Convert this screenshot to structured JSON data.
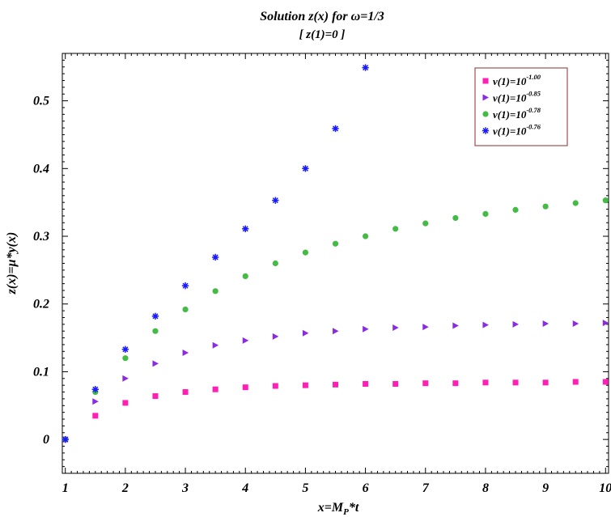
{
  "chart_data": {
    "type": "scatter",
    "title": "Solution z(x) for ω=1/3",
    "subtitle": "[ z(1)=0 ]",
    "xlabel": {
      "main": "x=M",
      "sub": "P",
      "rest": "*t"
    },
    "ylabel": "z(x)=μ*y(x)",
    "xlim": [
      0.95,
      10.05
    ],
    "ylim": [
      -0.05,
      0.57
    ],
    "xticks": [
      1,
      2,
      3,
      4,
      5,
      6,
      7,
      8,
      9,
      10
    ],
    "xtick_labels": [
      "1",
      "2",
      "3",
      "4",
      "5",
      "6",
      "7",
      "8",
      "9",
      "10"
    ],
    "yticks": [
      0,
      0.1,
      0.2,
      0.3,
      0.4,
      0.5
    ],
    "ytick_labels": [
      "0",
      "0.1",
      "0.2",
      "0.3",
      "0.4",
      "0.5"
    ],
    "grid": false,
    "legend_position": "top-right",
    "series": [
      {
        "name": {
          "base": "v(1)=10",
          "exp": "-1.00"
        },
        "marker": "square",
        "color": "#ff1fb4",
        "x": [
          1,
          1.5,
          2,
          2.5,
          3,
          3.5,
          4,
          4.5,
          5,
          5.5,
          6,
          6.5,
          7,
          7.5,
          8,
          8.5,
          9,
          9.5,
          10
        ],
        "y": [
          0,
          0.035,
          0.054,
          0.064,
          0.07,
          0.074,
          0.077,
          0.079,
          0.08,
          0.081,
          0.082,
          0.082,
          0.083,
          0.083,
          0.084,
          0.084,
          0.084,
          0.085,
          0.085
        ]
      },
      {
        "name": {
          "base": "v(1)=10",
          "exp": "-0.85"
        },
        "marker": "triangle-right",
        "color": "#8a2be2",
        "x": [
          1,
          1.5,
          2,
          2.5,
          3,
          3.5,
          4,
          4.5,
          5,
          5.5,
          6,
          6.5,
          7,
          7.5,
          8,
          8.5,
          9,
          9.5,
          10
        ],
        "y": [
          0,
          0.056,
          0.09,
          0.112,
          0.128,
          0.139,
          0.146,
          0.152,
          0.157,
          0.16,
          0.163,
          0.165,
          0.166,
          0.168,
          0.169,
          0.17,
          0.171,
          0.171,
          0.172
        ]
      },
      {
        "name": {
          "base": "v(1)=10",
          "exp": "-0.78"
        },
        "marker": "circle",
        "color": "#44bb44",
        "x": [
          1,
          1.5,
          2,
          2.5,
          3,
          3.5,
          4,
          4.5,
          5,
          5.5,
          6,
          6.5,
          7,
          7.5,
          8,
          8.5,
          9,
          9.5,
          10
        ],
        "y": [
          0,
          0.07,
          0.12,
          0.16,
          0.192,
          0.219,
          0.241,
          0.26,
          0.276,
          0.289,
          0.3,
          0.311,
          0.319,
          0.327,
          0.333,
          0.339,
          0.344,
          0.349,
          0.353
        ]
      },
      {
        "name": {
          "base": "v(1)=10",
          "exp": "-0.76"
        },
        "marker": "star",
        "color": "#1a1aff",
        "x": [
          1,
          1.5,
          2,
          2.5,
          3,
          3.5,
          4,
          4.5,
          5,
          5.5,
          6
        ],
        "y": [
          0,
          0.074,
          0.133,
          0.182,
          0.227,
          0.269,
          0.311,
          0.353,
          0.4,
          0.459,
          0.549
        ]
      }
    ]
  }
}
